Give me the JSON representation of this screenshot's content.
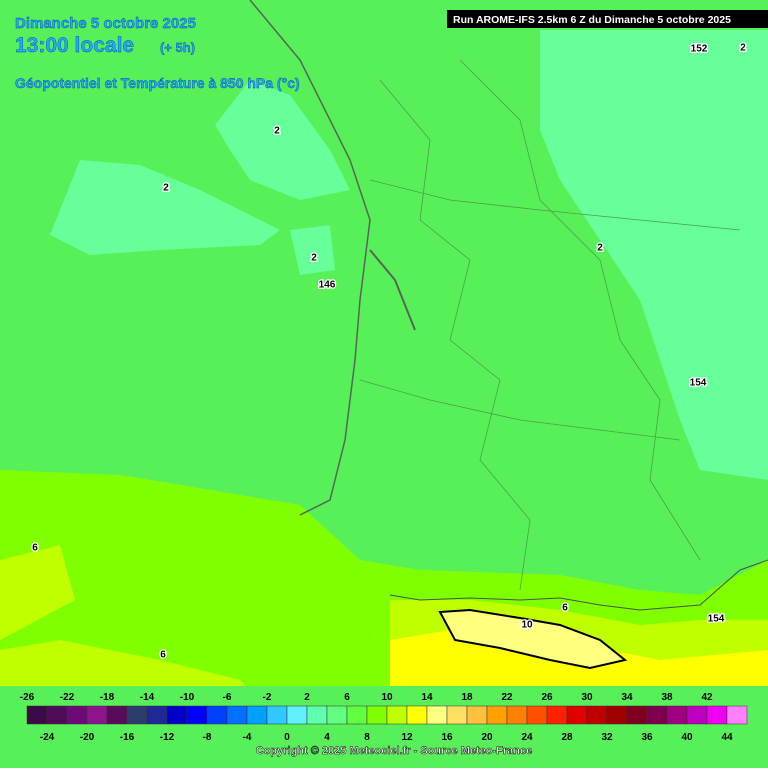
{
  "header": {
    "date": "Dimanche 5 octobre 2025",
    "time": "13:00 locale",
    "offset": "(+ 5h)",
    "field": "Géopotentiel et Température à 850 hPa (°c)",
    "run": "Run AROME-IFS 2.5km 6 Z du Dimanche 5 octobre 2025"
  },
  "contour_labels": [
    2,
    152,
    2,
    2,
    2,
    2,
    146,
    154,
    6,
    6,
    6,
    10,
    154
  ],
  "legend": {
    "values": [
      -26,
      -24,
      -22,
      -20,
      -18,
      -16,
      -14,
      -12,
      -10,
      -8,
      -6,
      -4,
      -2,
      0,
      2,
      4,
      6,
      8,
      10,
      12,
      14,
      16,
      18,
      20,
      22,
      24,
      26,
      28,
      30,
      32,
      34,
      36,
      38,
      40,
      42,
      44
    ],
    "colors": [
      "#3c0a46",
      "#500a5a",
      "#6e0a78",
      "#8c148c",
      "#5a0a5a",
      "#2d3c6e",
      "#1e2896",
      "#0000c8",
      "#0000ff",
      "#0040ff",
      "#0070ff",
      "#00a0ff",
      "#30c8ff",
      "#60f0ff",
      "#60ffb0",
      "#60ff80",
      "#60ff40",
      "#80ff00",
      "#c0ff00",
      "#ffff00",
      "#ffff80",
      "#ffe060",
      "#ffc040",
      "#ffa000",
      "#ff8000",
      "#ff5000",
      "#ff2000",
      "#e00000",
      "#c00000",
      "#a00000",
      "#800020",
      "#800050",
      "#a00080",
      "#c000c0",
      "#f000f0",
      "#ff80ff"
    ]
  },
  "footer": {
    "copyright": "Copyright © 2025 Meteociel.fr - Source Meteo-France"
  }
}
